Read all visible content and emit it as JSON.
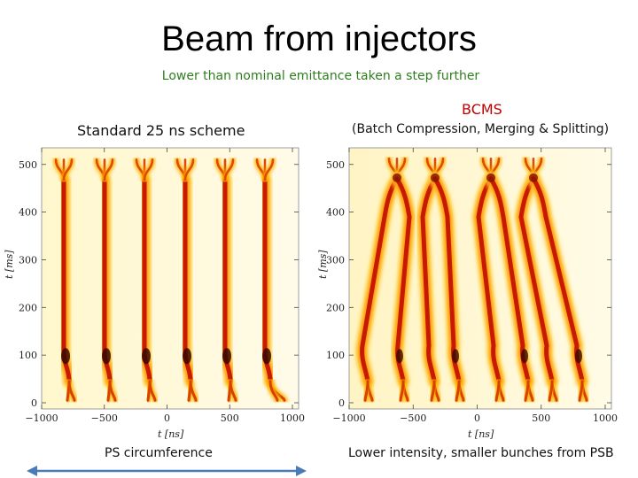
{
  "title": "Beam from injectors",
  "subtitle": "Lower than nominal emittance taken a step further",
  "left_label": "Standard 25 ns scheme",
  "bcms_label": "BCMS",
  "bcms_full": "(Batch Compression, Merging & Splitting)",
  "bottom_left": "PS circumference",
  "bottom_right": "Lower intensity, smaller bunches from PSB",
  "colors": {
    "subtitle": "#2f7d1f",
    "bcms": "#c00000",
    "arrow": "#4a7bb7"
  },
  "plots": {
    "left": {
      "xlabel": "t [ns]",
      "ylabel": "t [ms]",
      "xticks": [
        "-1000",
        "-500",
        "0",
        "500",
        "1000"
      ],
      "yticks": [
        "0",
        "100",
        "200",
        "300",
        "400",
        "500"
      ]
    },
    "right": {
      "xlabel": "t [ns]",
      "ylabel": "t [ms]",
      "xticks": [
        "-1000",
        "-500",
        "0",
        "500",
        "1000"
      ],
      "yticks": [
        "0",
        "100",
        "200",
        "300",
        "400",
        "500"
      ]
    }
  }
}
